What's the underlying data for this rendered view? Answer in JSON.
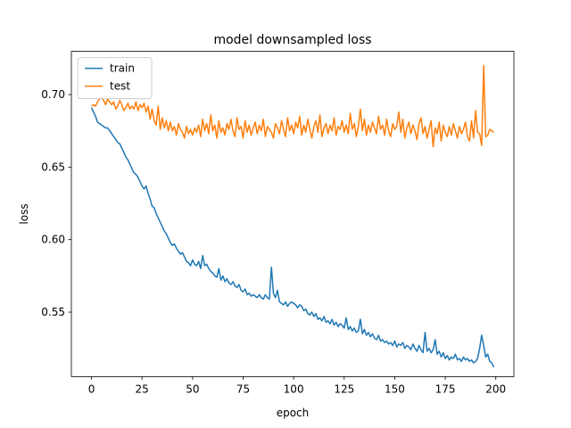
{
  "chart_data": {
    "type": "line",
    "title": "model downsampled loss",
    "xlabel": "epoch",
    "ylabel": "loss",
    "x": [
      0,
      1,
      2,
      3,
      4,
      5,
      6,
      7,
      8,
      9,
      10,
      11,
      12,
      13,
      14,
      15,
      16,
      17,
      18,
      19,
      20,
      21,
      22,
      23,
      24,
      25,
      26,
      27,
      28,
      29,
      30,
      31,
      32,
      33,
      34,
      35,
      36,
      37,
      38,
      39,
      40,
      41,
      42,
      43,
      44,
      45,
      46,
      47,
      48,
      49,
      50,
      51,
      52,
      53,
      54,
      55,
      56,
      57,
      58,
      59,
      60,
      61,
      62,
      63,
      64,
      65,
      66,
      67,
      68,
      69,
      70,
      71,
      72,
      73,
      74,
      75,
      76,
      77,
      78,
      79,
      80,
      81,
      82,
      83,
      84,
      85,
      86,
      87,
      88,
      89,
      90,
      91,
      92,
      93,
      94,
      95,
      96,
      97,
      98,
      99,
      100,
      101,
      102,
      103,
      104,
      105,
      106,
      107,
      108,
      109,
      110,
      111,
      112,
      113,
      114,
      115,
      116,
      117,
      118,
      119,
      120,
      121,
      122,
      123,
      124,
      125,
      126,
      127,
      128,
      129,
      130,
      131,
      132,
      133,
      134,
      135,
      136,
      137,
      138,
      139,
      140,
      141,
      142,
      143,
      144,
      145,
      146,
      147,
      148,
      149,
      150,
      151,
      152,
      153,
      154,
      155,
      156,
      157,
      158,
      159,
      160,
      161,
      162,
      163,
      164,
      165,
      166,
      167,
      168,
      169,
      170,
      171,
      172,
      173,
      174,
      175,
      176,
      177,
      178,
      179,
      180,
      181,
      182,
      183,
      184,
      185,
      186,
      187,
      188,
      189,
      190,
      191,
      192,
      193,
      194,
      195,
      196,
      197,
      198,
      199
    ],
    "series": [
      {
        "name": "train",
        "color": "#1f77b4",
        "values": [
          0.691,
          0.688,
          0.685,
          0.681,
          0.68,
          0.679,
          0.678,
          0.677,
          0.677,
          0.675,
          0.673,
          0.671,
          0.669,
          0.667,
          0.666,
          0.663,
          0.66,
          0.657,
          0.655,
          0.652,
          0.649,
          0.646,
          0.645,
          0.643,
          0.64,
          0.637,
          0.635,
          0.637,
          0.632,
          0.628,
          0.623,
          0.622,
          0.618,
          0.615,
          0.612,
          0.609,
          0.606,
          0.604,
          0.601,
          0.598,
          0.596,
          0.597,
          0.594,
          0.592,
          0.59,
          0.591,
          0.588,
          0.585,
          0.584,
          0.582,
          0.586,
          0.583,
          0.582,
          0.585,
          0.58,
          0.589,
          0.582,
          0.583,
          0.58,
          0.578,
          0.577,
          0.575,
          0.574,
          0.58,
          0.572,
          0.575,
          0.571,
          0.573,
          0.57,
          0.569,
          0.571,
          0.568,
          0.567,
          0.569,
          0.565,
          0.564,
          0.566,
          0.562,
          0.563,
          0.561,
          0.562,
          0.561,
          0.56,
          0.562,
          0.56,
          0.559,
          0.562,
          0.56,
          0.559,
          0.581,
          0.563,
          0.56,
          0.565,
          0.557,
          0.556,
          0.555,
          0.557,
          0.554,
          0.556,
          0.557,
          0.556,
          0.555,
          0.553,
          0.555,
          0.554,
          0.551,
          0.552,
          0.549,
          0.548,
          0.55,
          0.547,
          0.549,
          0.545,
          0.546,
          0.544,
          0.547,
          0.543,
          0.544,
          0.542,
          0.545,
          0.541,
          0.543,
          0.54,
          0.542,
          0.541,
          0.539,
          0.546,
          0.538,
          0.54,
          0.537,
          0.539,
          0.536,
          0.537,
          0.545,
          0.535,
          0.538,
          0.534,
          0.536,
          0.533,
          0.535,
          0.532,
          0.531,
          0.534,
          0.53,
          0.531,
          0.529,
          0.53,
          0.528,
          0.529,
          0.527,
          0.53,
          0.526,
          0.528,
          0.527,
          0.529,
          0.525,
          0.527,
          0.526,
          0.524,
          0.528,
          0.525,
          0.523,
          0.527,
          0.524,
          0.522,
          0.536,
          0.523,
          0.525,
          0.522,
          0.524,
          0.531,
          0.521,
          0.523,
          0.519,
          0.522,
          0.518,
          0.52,
          0.517,
          0.519,
          0.518,
          0.521,
          0.517,
          0.518,
          0.516,
          0.519,
          0.517,
          0.518,
          0.516,
          0.517,
          0.515,
          0.516,
          0.518,
          0.525,
          0.534,
          0.527,
          0.519,
          0.521,
          0.516,
          0.515,
          0.512
        ]
      },
      {
        "name": "test",
        "color": "#ff7f0e",
        "values": [
          0.692,
          0.693,
          0.692,
          0.695,
          0.697,
          0.698,
          0.696,
          0.693,
          0.697,
          0.695,
          0.693,
          0.695,
          0.69,
          0.692,
          0.696,
          0.693,
          0.689,
          0.691,
          0.694,
          0.69,
          0.692,
          0.69,
          0.695,
          0.689,
          0.693,
          0.691,
          0.694,
          0.688,
          0.692,
          0.683,
          0.69,
          0.682,
          0.679,
          0.692,
          0.676,
          0.684,
          0.677,
          0.682,
          0.675,
          0.681,
          0.675,
          0.678,
          0.672,
          0.68,
          0.676,
          0.674,
          0.67,
          0.678,
          0.673,
          0.676,
          0.672,
          0.677,
          0.674,
          0.679,
          0.671,
          0.683,
          0.675,
          0.68,
          0.673,
          0.686,
          0.675,
          0.679,
          0.67,
          0.682,
          0.674,
          0.677,
          0.672,
          0.68,
          0.676,
          0.683,
          0.675,
          0.671,
          0.684,
          0.676,
          0.678,
          0.67,
          0.682,
          0.674,
          0.679,
          0.672,
          0.677,
          0.681,
          0.673,
          0.679,
          0.675,
          0.683,
          0.671,
          0.678,
          0.676,
          0.674,
          0.67,
          0.68,
          0.677,
          0.673,
          0.682,
          0.676,
          0.671,
          0.684,
          0.675,
          0.679,
          0.673,
          0.681,
          0.677,
          0.685,
          0.672,
          0.679,
          0.674,
          0.683,
          0.676,
          0.67,
          0.678,
          0.682,
          0.674,
          0.686,
          0.671,
          0.677,
          0.68,
          0.673,
          0.679,
          0.675,
          0.684,
          0.672,
          0.678,
          0.676,
          0.682,
          0.674,
          0.679,
          0.673,
          0.687,
          0.676,
          0.68,
          0.671,
          0.678,
          0.69,
          0.675,
          0.683,
          0.672,
          0.679,
          0.674,
          0.681,
          0.677,
          0.673,
          0.685,
          0.676,
          0.679,
          0.672,
          0.683,
          0.675,
          0.671,
          0.68,
          0.676,
          0.678,
          0.688,
          0.674,
          0.683,
          0.67,
          0.677,
          0.681,
          0.673,
          0.679,
          0.675,
          0.669,
          0.68,
          0.684,
          0.673,
          0.678,
          0.67,
          0.676,
          0.682,
          0.664,
          0.677,
          0.673,
          0.681,
          0.668,
          0.679,
          0.674,
          0.671,
          0.678,
          0.672,
          0.68,
          0.675,
          0.67,
          0.678,
          0.673,
          0.676,
          0.681,
          0.671,
          0.668,
          0.682,
          0.67,
          0.689,
          0.674,
          0.673,
          0.665,
          0.72,
          0.671,
          0.672,
          0.676,
          0.675,
          0.674
        ]
      }
    ],
    "xlim": [
      -9.95,
      208.95
    ],
    "xticks": [
      0,
      25,
      50,
      75,
      100,
      125,
      150,
      175,
      200
    ],
    "ylim": [
      0.5055,
      0.7298
    ],
    "yticks": [
      0.55,
      {
        "value": 0.6,
        "label": "0.60"
      },
      0.65,
      {
        "value": 0.7,
        "label": "0.70"
      }
    ],
    "grid": false,
    "legend": "upper-left"
  }
}
